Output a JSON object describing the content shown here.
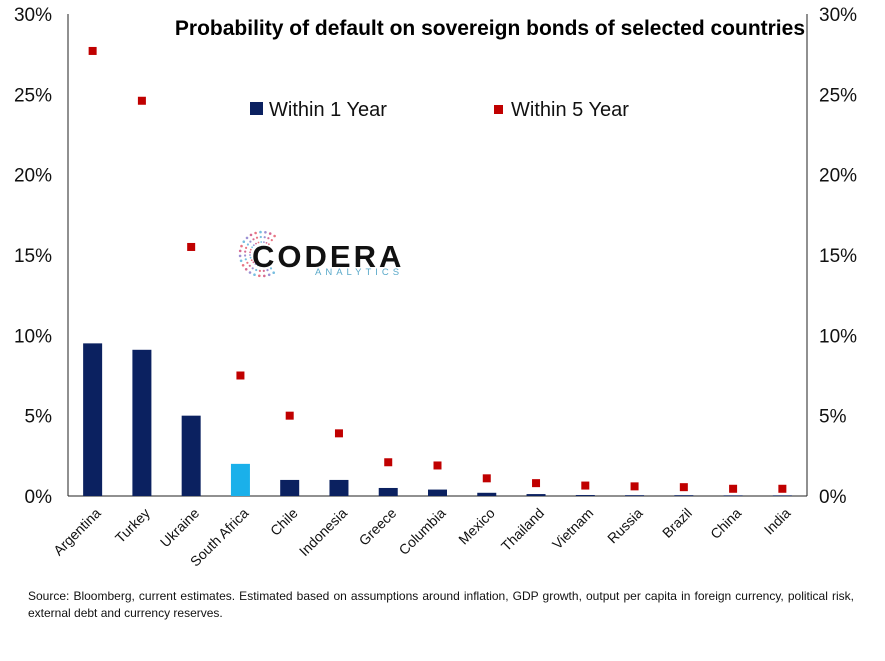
{
  "chart_data": {
    "type": "bar",
    "title": "Probability of default on sovereign bonds of selected countries",
    "categories": [
      "Argentina",
      "Turkey",
      "Ukraine",
      "South Africa",
      "Chile",
      "Indonesia",
      "Greece",
      "Columbia",
      "Mexico",
      "Thailand",
      "Vietnam",
      "Russia",
      "Brazil",
      "China",
      "India"
    ],
    "series": [
      {
        "name": "Within 1 Year",
        "type": "bar",
        "color": "#0b2160",
        "highlight": {
          "category": "South Africa",
          "color": "#1ab0ea"
        },
        "values": [
          9.5,
          9.1,
          5.0,
          2.0,
          1.0,
          1.0,
          0.5,
          0.4,
          0.2,
          0.12,
          0.06,
          0.05,
          0.05,
          0.04,
          0.04
        ]
      },
      {
        "name": "Within 5 Year",
        "type": "scatter",
        "marker": "square",
        "color": "#c00000",
        "values": [
          27.7,
          24.6,
          15.5,
          7.5,
          5.0,
          3.9,
          2.1,
          1.9,
          1.1,
          0.8,
          0.65,
          0.6,
          0.55,
          0.45,
          0.45
        ]
      }
    ],
    "ylim": [
      0,
      30
    ],
    "yticks": [
      0,
      5,
      10,
      15,
      20,
      25,
      30
    ],
    "ytick_labels": [
      "0%",
      "5%",
      "10%",
      "15%",
      "20%",
      "25%",
      "30%"
    ],
    "secondary_axis": true,
    "legend": "top",
    "grid": false
  },
  "watermark": {
    "name": "CODERA",
    "sub": "ANALYTICS"
  },
  "source_note": "Source: Bloomberg, current estimates. Estimated based on assumptions around inflation, GDP growth, output per capita in foreign currency, political risk, external debt and currency reserves."
}
